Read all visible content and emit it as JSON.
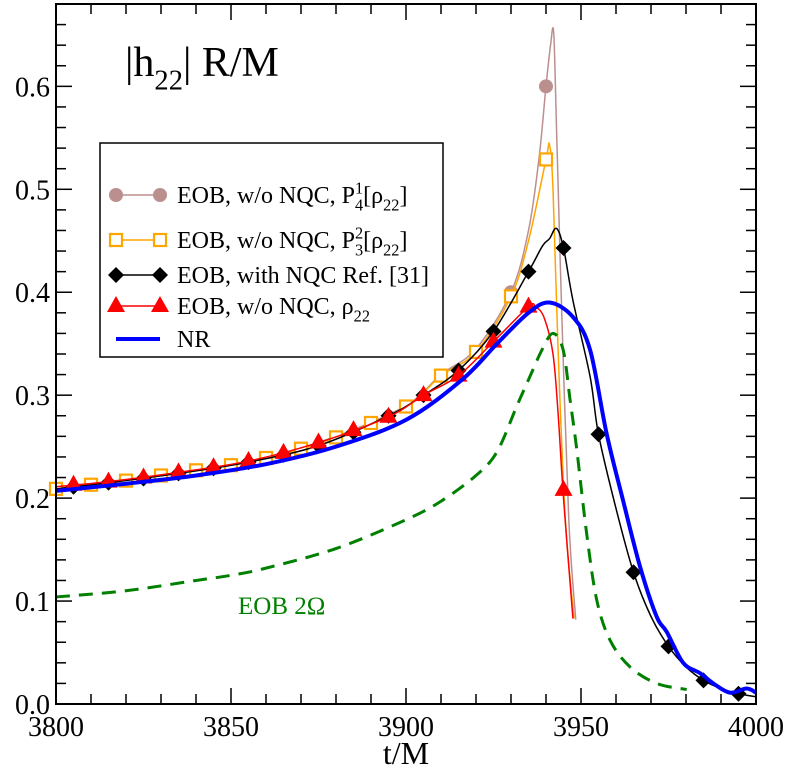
{
  "chart_data": {
    "type": "line",
    "title_parts": [
      {
        "t": "|h"
      },
      {
        "t": "22",
        "s": "sub"
      },
      {
        "t": "| R/M"
      }
    ],
    "xlabel": "t/M",
    "ylabel": "",
    "xlim": [
      3800,
      4000
    ],
    "ylim": [
      0,
      0.68
    ],
    "xticks": [
      "3800",
      "3850",
      "3900",
      "3950",
      "4000"
    ],
    "yticks": [
      "0.0",
      "0.1",
      "0.2",
      "0.3",
      "0.4",
      "0.5",
      "0.6"
    ],
    "grid": false,
    "legend_placement": "upper-left",
    "annotation": {
      "text": "EOB 2Ω",
      "color": "#008000"
    },
    "series": [
      {
        "name_parts": [
          {
            "t": "EOB, w/o NQC, P"
          },
          {
            "t": "1",
            "s": "sup"
          },
          {
            "t": "4",
            "s": "sub"
          },
          {
            "t": "[ρ"
          },
          {
            "t": "22",
            "s": "sub"
          },
          {
            "t": "]"
          }
        ],
        "color": "#bc8f8f",
        "marker": "circle",
        "dashed": false,
        "width": 1.5,
        "line": [
          [
            3800,
            0.209
          ],
          [
            3820,
            0.217
          ],
          [
            3840,
            0.227
          ],
          [
            3860,
            0.239
          ],
          [
            3880,
            0.26
          ],
          [
            3900,
            0.29
          ],
          [
            3910,
            0.32
          ],
          [
            3920,
            0.345
          ],
          [
            3930,
            0.4
          ],
          [
            3935,
            0.46
          ],
          [
            3938,
            0.53
          ],
          [
            3940,
            0.6
          ],
          [
            3941.3,
            0.64
          ],
          [
            3942.2,
            0.652
          ],
          [
            3943,
            0.56
          ],
          [
            3944.5,
            0.38
          ],
          [
            3946.5,
            0.18
          ],
          [
            3948.5,
            0.082
          ]
        ],
        "markers": [
          [
            3800,
            0.209
          ],
          [
            3810,
            0.213
          ],
          [
            3820,
            0.217
          ],
          [
            3830,
            0.222
          ],
          [
            3840,
            0.227
          ],
          [
            3850,
            0.232
          ],
          [
            3860,
            0.239
          ],
          [
            3870,
            0.248
          ],
          [
            3880,
            0.259
          ],
          [
            3890,
            0.273
          ],
          [
            3900,
            0.289
          ],
          [
            3910,
            0.319
          ],
          [
            3920,
            0.342
          ],
          [
            3930,
            0.4
          ],
          [
            3940,
            0.6
          ]
        ]
      },
      {
        "name_parts": [
          {
            "t": "EOB, w/o NQC, P"
          },
          {
            "t": "2",
            "s": "sup"
          },
          {
            "t": "3",
            "s": "sub"
          },
          {
            "t": "[ρ"
          },
          {
            "t": "22",
            "s": "sub"
          },
          {
            "t": "]"
          }
        ],
        "color": "#ffa500",
        "marker": "square",
        "dashed": false,
        "width": 1.5,
        "line": [
          [
            3800,
            0.209
          ],
          [
            3820,
            0.217
          ],
          [
            3840,
            0.227
          ],
          [
            3860,
            0.239
          ],
          [
            3880,
            0.259
          ],
          [
            3900,
            0.289
          ],
          [
            3910,
            0.319
          ],
          [
            3920,
            0.342
          ],
          [
            3930,
            0.396
          ],
          [
            3935,
            0.45
          ],
          [
            3940,
            0.529
          ],
          [
            3941,
            0.543
          ],
          [
            3942,
            0.5
          ],
          [
            3943.5,
            0.34
          ],
          [
            3945.5,
            0.18
          ],
          [
            3948,
            0.083
          ]
        ],
        "markers": [
          [
            3800,
            0.209
          ],
          [
            3810,
            0.213
          ],
          [
            3820,
            0.217
          ],
          [
            3830,
            0.222
          ],
          [
            3840,
            0.227
          ],
          [
            3850,
            0.232
          ],
          [
            3860,
            0.239
          ],
          [
            3870,
            0.248
          ],
          [
            3880,
            0.259
          ],
          [
            3890,
            0.273
          ],
          [
            3900,
            0.289
          ],
          [
            3910,
            0.319
          ],
          [
            3920,
            0.342
          ],
          [
            3930,
            0.396
          ],
          [
            3940,
            0.529
          ]
        ]
      },
      {
        "name_parts": [
          {
            "t": "EOB, with NQC Ref. [31]"
          }
        ],
        "color": "#000000",
        "marker": "diamond",
        "dashed": false,
        "width": 1.5,
        "line": [
          [
            3800,
            0.209
          ],
          [
            3815,
            0.215
          ],
          [
            3835,
            0.224
          ],
          [
            3855,
            0.235
          ],
          [
            3875,
            0.251
          ],
          [
            3895,
            0.28
          ],
          [
            3905,
            0.3
          ],
          [
            3915,
            0.324
          ],
          [
            3925,
            0.362
          ],
          [
            3935,
            0.42
          ],
          [
            3939,
            0.445
          ],
          [
            3941,
            0.452
          ],
          [
            3943,
            0.462
          ],
          [
            3945,
            0.443
          ],
          [
            3947.7,
            0.392
          ],
          [
            3952.6,
            0.318
          ],
          [
            3955,
            0.262
          ],
          [
            3960,
            0.19
          ],
          [
            3965,
            0.128
          ],
          [
            3970,
            0.085
          ],
          [
            3975,
            0.056
          ],
          [
            3980,
            0.036
          ],
          [
            3985,
            0.023
          ],
          [
            3990,
            0.015
          ],
          [
            3995,
            0.01
          ],
          [
            4000,
            0.007
          ]
        ],
        "markers": [
          [
            3805,
            0.211
          ],
          [
            3815,
            0.215
          ],
          [
            3825,
            0.219
          ],
          [
            3835,
            0.224
          ],
          [
            3845,
            0.229
          ],
          [
            3855,
            0.235
          ],
          [
            3865,
            0.242
          ],
          [
            3875,
            0.251
          ],
          [
            3885,
            0.264
          ],
          [
            3895,
            0.28
          ],
          [
            3905,
            0.3
          ],
          [
            3915,
            0.324
          ],
          [
            3925,
            0.362
          ],
          [
            3935,
            0.42
          ],
          [
            3945,
            0.443
          ],
          [
            3955,
            0.262
          ],
          [
            3965,
            0.128
          ],
          [
            3975,
            0.056
          ],
          [
            3985,
            0.023
          ],
          [
            3995,
            0.01
          ]
        ]
      },
      {
        "name_parts": [
          {
            "t": "EOB, w/o NQC, ρ"
          },
          {
            "t": "22",
            "s": "sub"
          }
        ],
        "color": "#ff0000",
        "marker": "triangle",
        "dashed": false,
        "width": 1.5,
        "line": [
          [
            3800,
            0.211
          ],
          [
            3815,
            0.216
          ],
          [
            3835,
            0.225
          ],
          [
            3855,
            0.236
          ],
          [
            3875,
            0.254
          ],
          [
            3895,
            0.279
          ],
          [
            3905,
            0.3
          ],
          [
            3915,
            0.319
          ],
          [
            3925,
            0.352
          ],
          [
            3935,
            0.386
          ],
          [
            3937,
            0.386
          ],
          [
            3939.5,
            0.375
          ],
          [
            3942,
            0.34
          ],
          [
            3943.5,
            0.28
          ],
          [
            3945,
            0.2
          ],
          [
            3947.7,
            0.083
          ]
        ],
        "markers": [
          [
            3805,
            0.213
          ],
          [
            3815,
            0.216
          ],
          [
            3825,
            0.22
          ],
          [
            3835,
            0.225
          ],
          [
            3845,
            0.23
          ],
          [
            3855,
            0.236
          ],
          [
            3865,
            0.244
          ],
          [
            3875,
            0.254
          ],
          [
            3885,
            0.266
          ],
          [
            3895,
            0.279
          ],
          [
            3905,
            0.3
          ],
          [
            3915,
            0.319
          ],
          [
            3925,
            0.352
          ],
          [
            3935,
            0.386
          ],
          [
            3945,
            0.208
          ]
        ]
      },
      {
        "name_parts": [
          {
            "t": "NR"
          }
        ],
        "color": "#0000ff",
        "marker": "none",
        "dashed": false,
        "width": 4,
        "line": [
          [
            3800,
            0.207
          ],
          [
            3820,
            0.214
          ],
          [
            3840,
            0.222
          ],
          [
            3860,
            0.233
          ],
          [
            3880,
            0.25
          ],
          [
            3900,
            0.276
          ],
          [
            3916,
            0.315
          ],
          [
            3926,
            0.35
          ],
          [
            3935,
            0.38
          ],
          [
            3941,
            0.39
          ],
          [
            3947.7,
            0.376
          ],
          [
            3952.6,
            0.344
          ],
          [
            3957.3,
            0.263
          ],
          [
            3962,
            0.198
          ],
          [
            3966.9,
            0.133
          ],
          [
            3971.6,
            0.085
          ],
          [
            3974.5,
            0.07
          ],
          [
            3979.2,
            0.04
          ],
          [
            3984,
            0.03
          ],
          [
            3987.8,
            0.02
          ],
          [
            3992.6,
            0.011
          ],
          [
            3997.3,
            0.015
          ],
          [
            4000,
            0.011
          ]
        ],
        "markers": []
      },
      {
        "name_parts": [],
        "color": "#008000",
        "marker": "none",
        "dashed": true,
        "width": 3,
        "line": [
          [
            3800,
            0.104
          ],
          [
            3820,
            0.11
          ],
          [
            3840,
            0.12
          ],
          [
            3850,
            0.125
          ],
          [
            3860,
            0.132
          ],
          [
            3880,
            0.151
          ],
          [
            3900,
            0.179
          ],
          [
            3910,
            0.197
          ],
          [
            3920,
            0.222
          ],
          [
            3926,
            0.245
          ],
          [
            3931.6,
            0.289
          ],
          [
            3935,
            0.315
          ],
          [
            3939,
            0.345
          ],
          [
            3942,
            0.36
          ],
          [
            3944.9,
            0.344
          ],
          [
            3946.9,
            0.295
          ],
          [
            3948.8,
            0.247
          ],
          [
            3951.6,
            0.166
          ],
          [
            3954.5,
            0.101
          ],
          [
            3958.3,
            0.062
          ],
          [
            3964,
            0.036
          ],
          [
            3971.6,
            0.02
          ],
          [
            3980.2,
            0.014
          ]
        ],
        "markers": []
      }
    ]
  }
}
